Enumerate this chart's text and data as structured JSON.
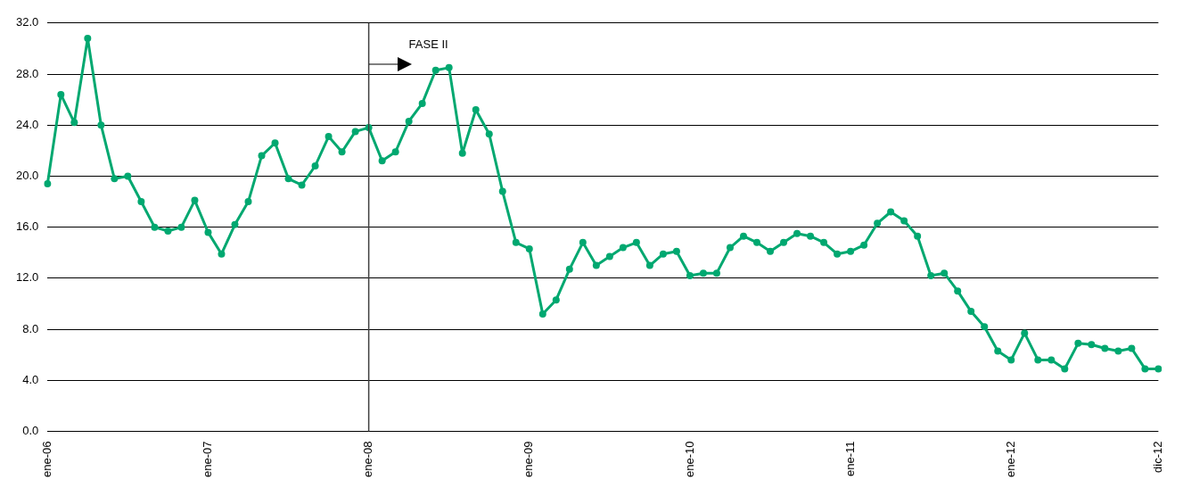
{
  "chart_data": {
    "type": "line",
    "categories": [
      "ene-06",
      null,
      null,
      null,
      null,
      null,
      null,
      null,
      null,
      null,
      null,
      null,
      "ene-07",
      null,
      null,
      null,
      null,
      null,
      null,
      null,
      null,
      null,
      null,
      null,
      "ene-08",
      null,
      null,
      null,
      null,
      null,
      null,
      null,
      null,
      null,
      null,
      null,
      "ene-09",
      null,
      null,
      null,
      null,
      null,
      null,
      null,
      null,
      null,
      null,
      null,
      "ene-10",
      null,
      null,
      null,
      null,
      null,
      null,
      null,
      null,
      null,
      null,
      null,
      "ene-11",
      null,
      null,
      null,
      null,
      null,
      null,
      null,
      null,
      null,
      null,
      null,
      "ene-12",
      null,
      null,
      null,
      null,
      null,
      null,
      null,
      null,
      null,
      null,
      "dic-12"
    ],
    "series": [
      {
        "color": "#00a870",
        "values": [
          19.4,
          26.4,
          24.2,
          30.8,
          24.0,
          19.8,
          20.0,
          18.0,
          16.0,
          15.7,
          16.0,
          18.1,
          15.6,
          13.9,
          16.2,
          18.0,
          21.6,
          22.6,
          19.8,
          19.3,
          20.8,
          23.1,
          21.9,
          23.5,
          23.8,
          21.2,
          21.9,
          24.3,
          25.7,
          28.3,
          28.5,
          21.8,
          25.2,
          23.3,
          18.8,
          14.8,
          14.3,
          9.2,
          10.3,
          12.7,
          14.8,
          13.0,
          13.7,
          14.4,
          14.8,
          13.0,
          13.9,
          14.1,
          12.2,
          12.4,
          12.4,
          14.4,
          15.3,
          14.8,
          14.1,
          14.8,
          15.5,
          15.3,
          14.8,
          13.9,
          14.1,
          14.6,
          16.3,
          17.2,
          16.5,
          15.3,
          12.2,
          12.4,
          11.0,
          9.4,
          8.2,
          6.3,
          5.6,
          7.7,
          5.6,
          5.6,
          4.9,
          6.9,
          6.8,
          6.5,
          6.3,
          6.5,
          4.9,
          4.9
        ]
      }
    ],
    "ylim": [
      0,
      32
    ],
    "yticks": [
      {
        "value": 0,
        "label": "0.0"
      },
      {
        "value": 4,
        "label": "4.0"
      },
      {
        "value": 8,
        "label": "8.0"
      },
      {
        "value": 12,
        "label": "12.0"
      },
      {
        "value": 16,
        "label": "16.0"
      },
      {
        "value": 20,
        "label": "20.0"
      },
      {
        "value": 24,
        "label": "24.0"
      },
      {
        "value": 28,
        "label": "28.0"
      },
      {
        "value": 32,
        "label": "32.0"
      }
    ],
    "grid": "y",
    "legend": false,
    "marker": "circle",
    "line_style": "solid",
    "ref_lines": [
      {
        "axis": "x",
        "value": "ene-08",
        "color": "#404040"
      }
    ],
    "annotations": [
      "FASE II"
    ]
  }
}
